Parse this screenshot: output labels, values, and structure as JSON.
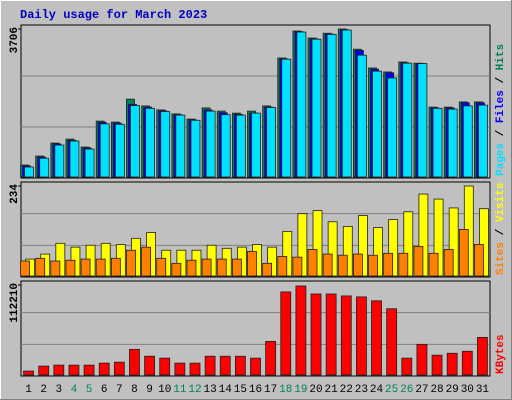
{
  "chart_data": {
    "type": "bar",
    "title": "Daily usage for March 2023",
    "categories": [
      "1",
      "2",
      "3",
      "4",
      "5",
      "6",
      "7",
      "8",
      "9",
      "10",
      "11",
      "12",
      "13",
      "14",
      "15",
      "16",
      "17",
      "18",
      "19",
      "20",
      "21",
      "22",
      "23",
      "24",
      "25",
      "26",
      "27",
      "28",
      "29",
      "30",
      "31"
    ],
    "category_colors": [
      "#000000",
      "#000000",
      "#000000",
      "#00805c",
      "#00805c",
      "#000000",
      "#000000",
      "#000000",
      "#000000",
      "#000000",
      "#00805c",
      "#00805c",
      "#000000",
      "#000000",
      "#000000",
      "#000000",
      "#000000",
      "#00805c",
      "#00805c",
      "#000000",
      "#000000",
      "#000000",
      "#000000",
      "#000000",
      "#00805c",
      "#00805c",
      "#000000",
      "#000000",
      "#000000",
      "#000000",
      "#000000"
    ],
    "grid": true,
    "panels": [
      {
        "ylim": [
          0,
          3706
        ],
        "yticks": [
          3706
        ],
        "series": [
          {
            "name": "Hits",
            "color": "#00805c",
            "values": [
              300,
              525,
              850,
              950,
              750,
              1400,
              1375,
              1950,
              1780,
              1680,
              1580,
              1450,
              1730,
              1650,
              1600,
              1650,
              1780,
              2980,
              3656,
              3480,
              3600,
              3706,
              3200,
              2730,
              2630,
              2880,
              2850,
              1750,
              1750,
              1880,
              1880
            ]
          },
          {
            "name": "Files",
            "color": "#0000ff",
            "values": [
              280,
              500,
              830,
              920,
              730,
              1370,
              1350,
              1820,
              1750,
              1660,
              1560,
              1430,
              1680,
              1610,
              1570,
              1600,
              1750,
              2960,
              3640,
              3460,
              3580,
              3690,
              3170,
              2700,
              2610,
              2860,
              2840,
              1730,
              1730,
              1860,
              1860
            ]
          },
          {
            "name": "Pages",
            "color": "#00e0ff",
            "values": [
              250,
              470,
              800,
              900,
              700,
              1330,
              1320,
              1790,
              1720,
              1640,
              1550,
              1420,
              1650,
              1560,
              1550,
              1600,
              1740,
              2950,
              3630,
              3450,
              3570,
              3680,
              3050,
              2650,
              2480,
              2850,
              2840,
              1720,
              1700,
              1780,
              1800
            ]
          }
        ]
      },
      {
        "ylim": [
          0,
          234
        ],
        "yticks": [
          234
        ],
        "series": [
          {
            "name": "Visits",
            "color": "#ffff00",
            "values": [
              44,
              57,
              85,
              75,
              80,
              85,
              82,
              98,
              113,
              67,
              67,
              67,
              80,
              72,
              75,
              82,
              75,
              116,
              162,
              170,
              141,
              129,
              157,
              126,
              147,
              167,
              213,
              200,
              177,
              234,
              175
            ]
          },
          {
            "name": "Sites",
            "color": "#ff8000",
            "values": [
              39,
              46,
              39,
              41,
              44,
              44,
              46,
              67,
              75,
              46,
              33,
              41,
              44,
              44,
              44,
              64,
              33,
              51,
              49,
              69,
              57,
              54,
              57,
              54,
              59,
              59,
              77,
              59,
              69,
              121,
              82
            ]
          }
        ]
      },
      {
        "ylim": [
          0,
          112210
        ],
        "yticks": [
          112210
        ],
        "series": [
          {
            "name": "KBytes",
            "color": "#ff0000",
            "values": [
              4900,
              11100,
              12300,
              12300,
              12300,
              14800,
              16000,
              32000,
              23400,
              21000,
              14800,
              14800,
              23400,
              23400,
              23400,
              21000,
              41900,
              103600,
              111000,
              101000,
              101000,
              98600,
              97400,
              92500,
              82600,
              21000,
              38200,
              24700,
              27100,
              29600,
              46900
            ]
          }
        ]
      }
    ]
  }
}
